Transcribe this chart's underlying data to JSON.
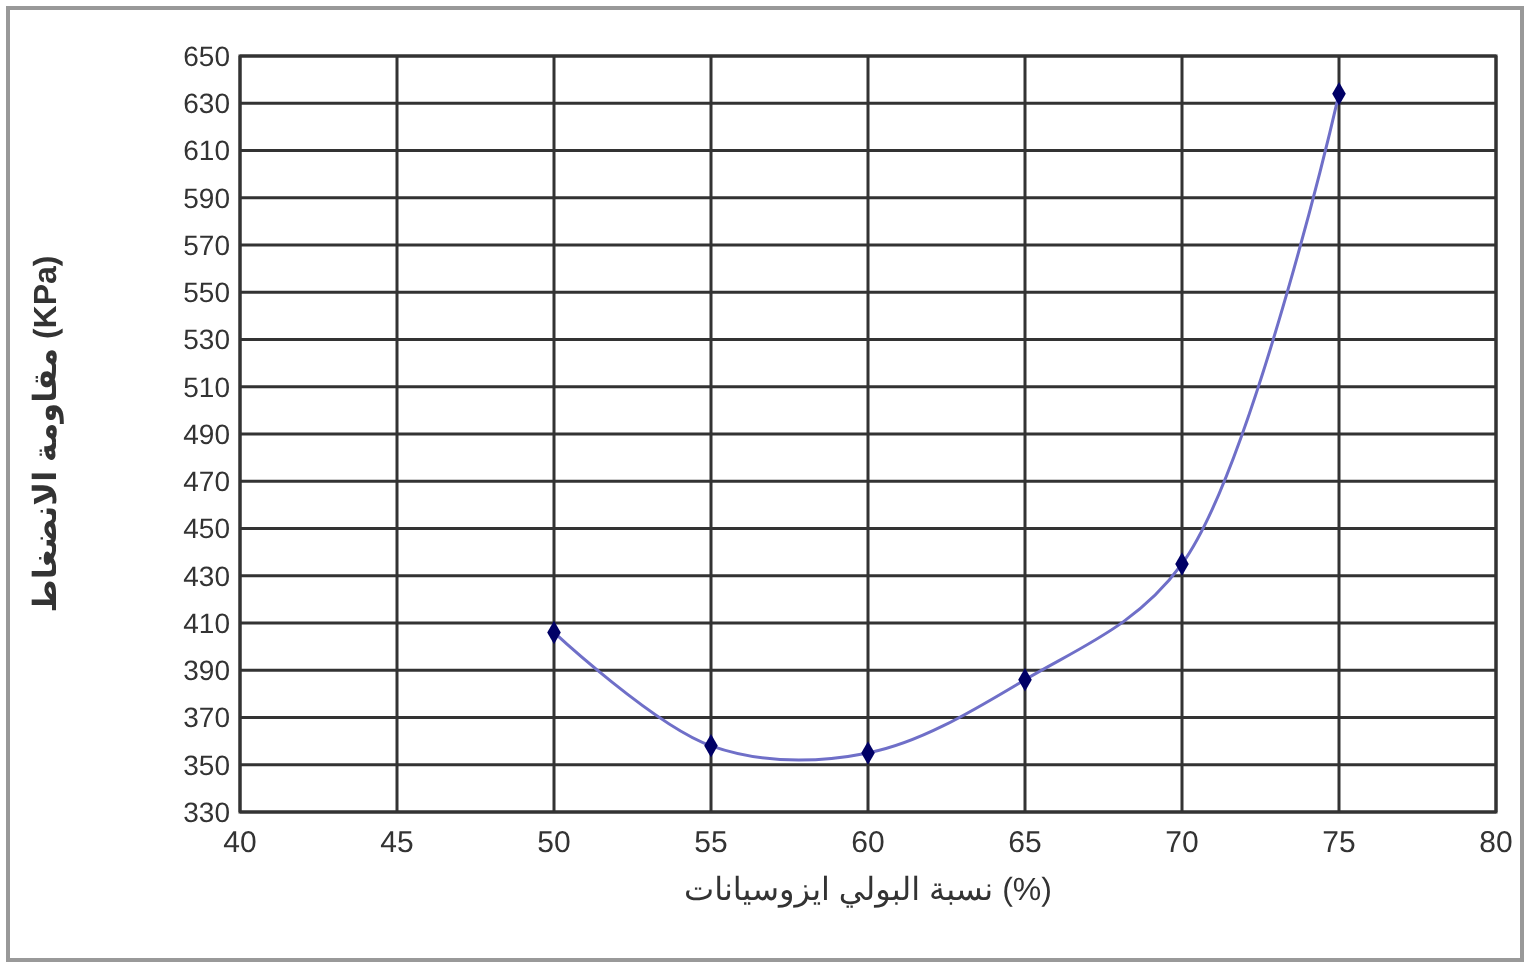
{
  "chart_data": {
    "type": "line",
    "xlabel": "نسبة البولي ايزوسيانات (%)",
    "ylabel": "مقاومة الانضغاط (KPa)",
    "x": [
      50,
      55,
      60,
      65,
      70,
      75
    ],
    "series": [
      {
        "color": "#6f6fc8",
        "values": [
          406,
          358,
          355,
          386,
          435,
          634
        ]
      }
    ],
    "xlim": [
      40,
      80
    ],
    "xticks": [
      40,
      45,
      50,
      55,
      60,
      65,
      70,
      75,
      80
    ],
    "ylim": [
      330,
      650
    ],
    "yticks": [
      330,
      350,
      370,
      390,
      410,
      430,
      450,
      470,
      490,
      510,
      530,
      550,
      570,
      590,
      610,
      630,
      650
    ],
    "grid": true,
    "marker": "diamond",
    "line_style": "solid"
  }
}
